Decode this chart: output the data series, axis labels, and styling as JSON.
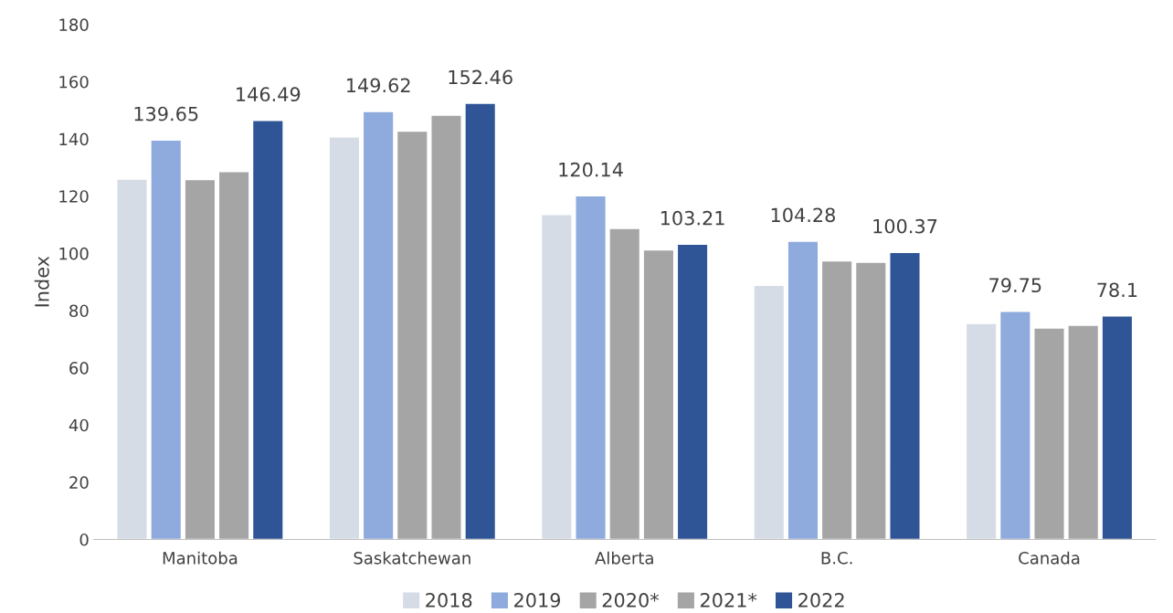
{
  "chart_data": {
    "type": "bar",
    "ylabel": "Index",
    "categories": [
      "Manitoba",
      "Saskatchewan",
      "Alberta",
      "B.C.",
      "Canada"
    ],
    "series": [
      {
        "name": "2018",
        "color": "#d6dce5",
        "values": [
          126.0,
          140.7,
          113.6,
          88.8,
          75.5
        ]
      },
      {
        "name": "2019",
        "color": "#8faadc",
        "values": [
          139.65,
          149.62,
          120.14,
          104.28,
          79.75
        ],
        "value_labels": [
          "139.65",
          "149.62",
          "120.14",
          "104.28",
          "79.75"
        ]
      },
      {
        "name": "2020*",
        "color": "#a5a5a5",
        "values": [
          125.8,
          142.7,
          108.7,
          97.4,
          73.9
        ]
      },
      {
        "name": "2021*",
        "color": "#a5a5a5",
        "values": [
          128.6,
          148.3,
          101.2,
          96.9,
          74.9
        ]
      },
      {
        "name": "2022",
        "color": "#2f5597",
        "values": [
          146.49,
          152.46,
          103.21,
          100.37,
          78.1
        ],
        "value_labels": [
          "146.49",
          "152.46",
          "103.21",
          "100.37",
          "78.1"
        ]
      }
    ],
    "ylim": [
      0,
      180
    ],
    "yticks": [
      0,
      20,
      40,
      60,
      80,
      100,
      120,
      140,
      160,
      180
    ],
    "grid": false,
    "legend": "bottom"
  }
}
